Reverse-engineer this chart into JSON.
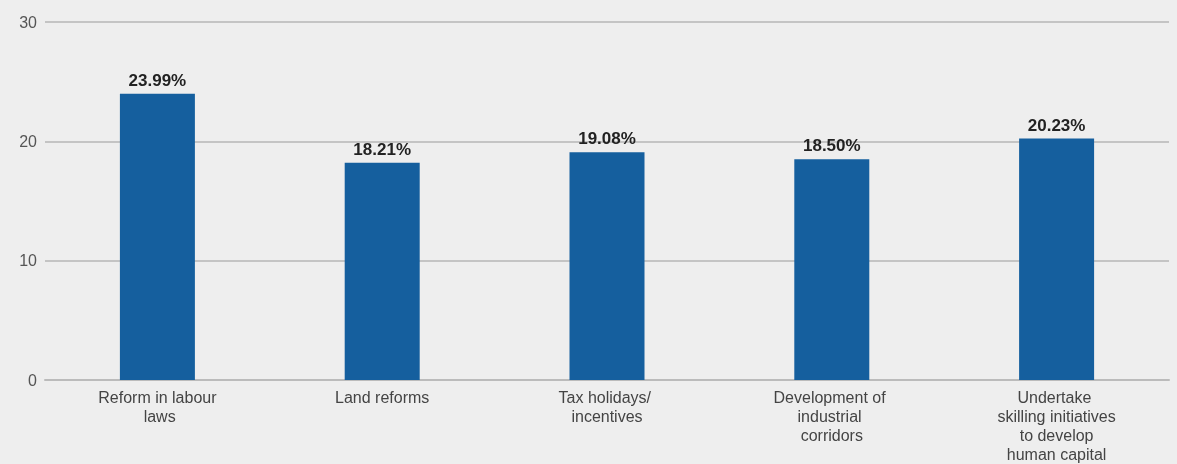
{
  "chart_data": {
    "type": "bar",
    "categories": [
      "Reform in labour laws",
      "Land reforms",
      "Tax holidays/ incentives",
      "Development of industrial corridors",
      "Undertake skilling initiatives to develop human capital"
    ],
    "values": [
      23.99,
      18.21,
      19.08,
      18.5,
      20.23
    ],
    "value_labels": [
      "23.99%",
      "18.21%",
      "19.08%",
      "18.50%",
      "20.23%"
    ],
    "color": "#155f9e",
    "ylim": [
      0,
      30
    ],
    "yticks": [
      0,
      10,
      20,
      30
    ],
    "grid": "y"
  }
}
